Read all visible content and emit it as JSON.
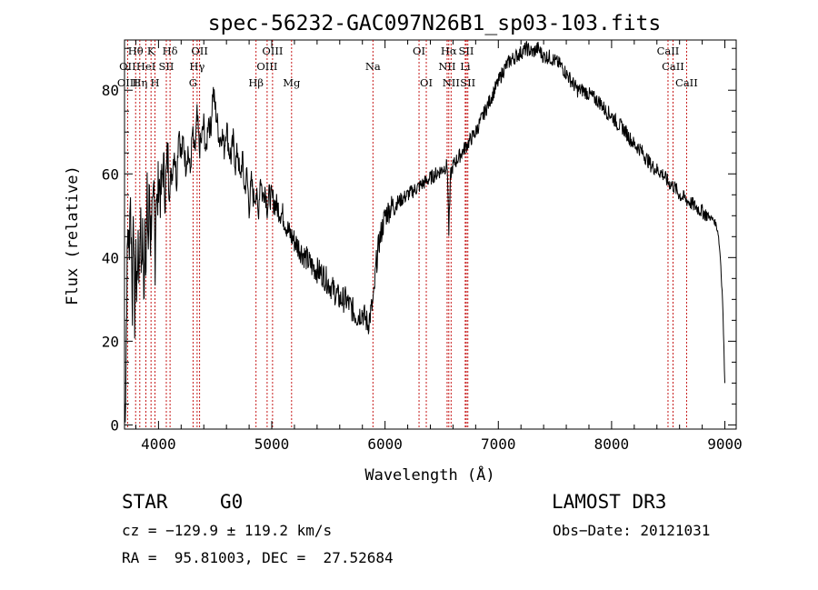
{
  "chart_data": {
    "type": "line",
    "title": "spec-56232-GAC097N26B1_sp03-103.fits",
    "xlabel": "Wavelength (Å)",
    "ylabel": "Flux (relative)",
    "xlim": [
      3700,
      9100
    ],
    "ylim": [
      -1,
      92
    ],
    "xticks": [
      4000,
      5000,
      6000,
      7000,
      8000,
      9000
    ],
    "yticks": [
      0,
      20,
      40,
      60,
      80
    ],
    "series": [
      {
        "name": "spectrum",
        "x": [
          3700,
          3710,
          3720,
          3730,
          3740,
          3750,
          3760,
          3770,
          3780,
          3790,
          3800,
          3810,
          3820,
          3830,
          3840,
          3850,
          3860,
          3870,
          3880,
          3890,
          3900,
          3910,
          3920,
          3930,
          3940,
          3950,
          3960,
          3970,
          3980,
          3990,
          4000,
          4020,
          4040,
          4060,
          4080,
          4100,
          4120,
          4140,
          4160,
          4180,
          4200,
          4220,
          4240,
          4260,
          4280,
          4300,
          4320,
          4340,
          4360,
          4380,
          4400,
          4420,
          4440,
          4460,
          4480,
          4500,
          4520,
          4540,
          4560,
          4580,
          4600,
          4620,
          4640,
          4660,
          4680,
          4700,
          4720,
          4740,
          4760,
          4780,
          4800,
          4820,
          4840,
          4860,
          4880,
          4900,
          4920,
          4940,
          4960,
          4980,
          5000,
          5050,
          5100,
          5150,
          5200,
          5250,
          5300,
          5350,
          5400,
          5450,
          5500,
          5550,
          5600,
          5650,
          5700,
          5750,
          5800,
          5850,
          5900,
          5920,
          5950,
          6000,
          6050,
          6100,
          6150,
          6200,
          6250,
          6300,
          6350,
          6400,
          6450,
          6500,
          6550,
          6563,
          6580,
          6600,
          6650,
          6700,
          6750,
          6800,
          6850,
          6900,
          6950,
          7000,
          7050,
          7100,
          7150,
          7200,
          7250,
          7300,
          7350,
          7400,
          7450,
          7500,
          7550,
          7600,
          7650,
          7700,
          7750,
          7800,
          7850,
          7900,
          7950,
          8000,
          8050,
          8100,
          8150,
          8200,
          8250,
          8300,
          8350,
          8400,
          8450,
          8500,
          8550,
          8600,
          8650,
          8700,
          8750,
          8800,
          8850,
          8900,
          8920,
          8940,
          8960,
          8980,
          9000
        ],
        "y": [
          2,
          8,
          32,
          48,
          40,
          56,
          44,
          30,
          50,
          25,
          42,
          30,
          46,
          35,
          52,
          34,
          48,
          28,
          50,
          38,
          54,
          42,
          58,
          44,
          52,
          48,
          55,
          40,
          58,
          50,
          60,
          54,
          62,
          56,
          64,
          58,
          60,
          66,
          58,
          72,
          64,
          68,
          62,
          66,
          60,
          70,
          64,
          74,
          66,
          68,
          72,
          64,
          74,
          70,
          80,
          76,
          72,
          68,
          70,
          66,
          72,
          66,
          64,
          68,
          62,
          66,
          58,
          64,
          56,
          60,
          52,
          58,
          54,
          56,
          50,
          60,
          54,
          57,
          52,
          55,
          54,
          52,
          50,
          46,
          44,
          42,
          40,
          38,
          37,
          36,
          34,
          32,
          30,
          30,
          28,
          26,
          27,
          24,
          30,
          38,
          44,
          50,
          52,
          53,
          54,
          55,
          56,
          57,
          58,
          59,
          60,
          61,
          62,
          46,
          60,
          62,
          64,
          66,
          68,
          70,
          73,
          76,
          79,
          82,
          85,
          87,
          88,
          89,
          90,
          89,
          90,
          88,
          88,
          87,
          86,
          84,
          82,
          80,
          80,
          79,
          78,
          77,
          75,
          74,
          72,
          71,
          69,
          67,
          66,
          64,
          62,
          61,
          60,
          58,
          57,
          55,
          54,
          53,
          52,
          51,
          50,
          49,
          48,
          46,
          40,
          30,
          10
        ]
      }
    ],
    "annotations": [
      {
        "label": "Hθ",
        "x": 3798,
        "row": 1
      },
      {
        "label": "K",
        "x": 3934,
        "row": 1
      },
      {
        "label": "Hδ",
        "x": 4102,
        "row": 1
      },
      {
        "label": "OII",
        "x": 4363,
        "row": 1
      },
      {
        "label": "OIII",
        "x": 5007,
        "row": 1
      },
      {
        "label": "OI",
        "x": 6300,
        "row": 1
      },
      {
        "label": "Hα",
        "x": 6563,
        "row": 1
      },
      {
        "label": "SII",
        "x": 6717,
        "row": 1
      },
      {
        "label": "CaII",
        "x": 8498,
        "row": 1
      },
      {
        "label": "OII",
        "x": 3727,
        "row": 2
      },
      {
        "label": "HeI",
        "x": 3889,
        "row": 2
      },
      {
        "label": "SII",
        "x": 4069,
        "row": 2
      },
      {
        "label": "Hγ",
        "x": 4341,
        "row": 2
      },
      {
        "label": "OIII",
        "x": 4959,
        "row": 2
      },
      {
        "label": "Na",
        "x": 5893,
        "row": 2
      },
      {
        "label": "NII",
        "x": 6548,
        "row": 2
      },
      {
        "label": "Li",
        "x": 6708,
        "row": 2
      },
      {
        "label": "CaII",
        "x": 8542,
        "row": 2
      },
      {
        "label": "OIII",
        "x": 3727,
        "row": 3
      },
      {
        "label": "Hη",
        "x": 3835,
        "row": 3
      },
      {
        "label": "H",
        "x": 3969,
        "row": 3
      },
      {
        "label": "G",
        "x": 4305,
        "row": 3
      },
      {
        "label": "Hβ",
        "x": 4861,
        "row": 3
      },
      {
        "label": "Mg",
        "x": 5175,
        "row": 3
      },
      {
        "label": "OI",
        "x": 6364,
        "row": 3
      },
      {
        "label": "NII",
        "x": 6583,
        "row": 3
      },
      {
        "label": "SII",
        "x": 6731,
        "row": 3
      },
      {
        "label": "CaII",
        "x": 8662,
        "row": 3
      }
    ]
  },
  "info": {
    "class": "STAR",
    "subclass": "G0",
    "survey": "LAMOST DR3",
    "cz": "cz = −129.9 ± 119.2 km/s",
    "obs_date": "Obs−Date: 20121031",
    "radec": "RA =  95.81003, DEC =  27.52684"
  }
}
